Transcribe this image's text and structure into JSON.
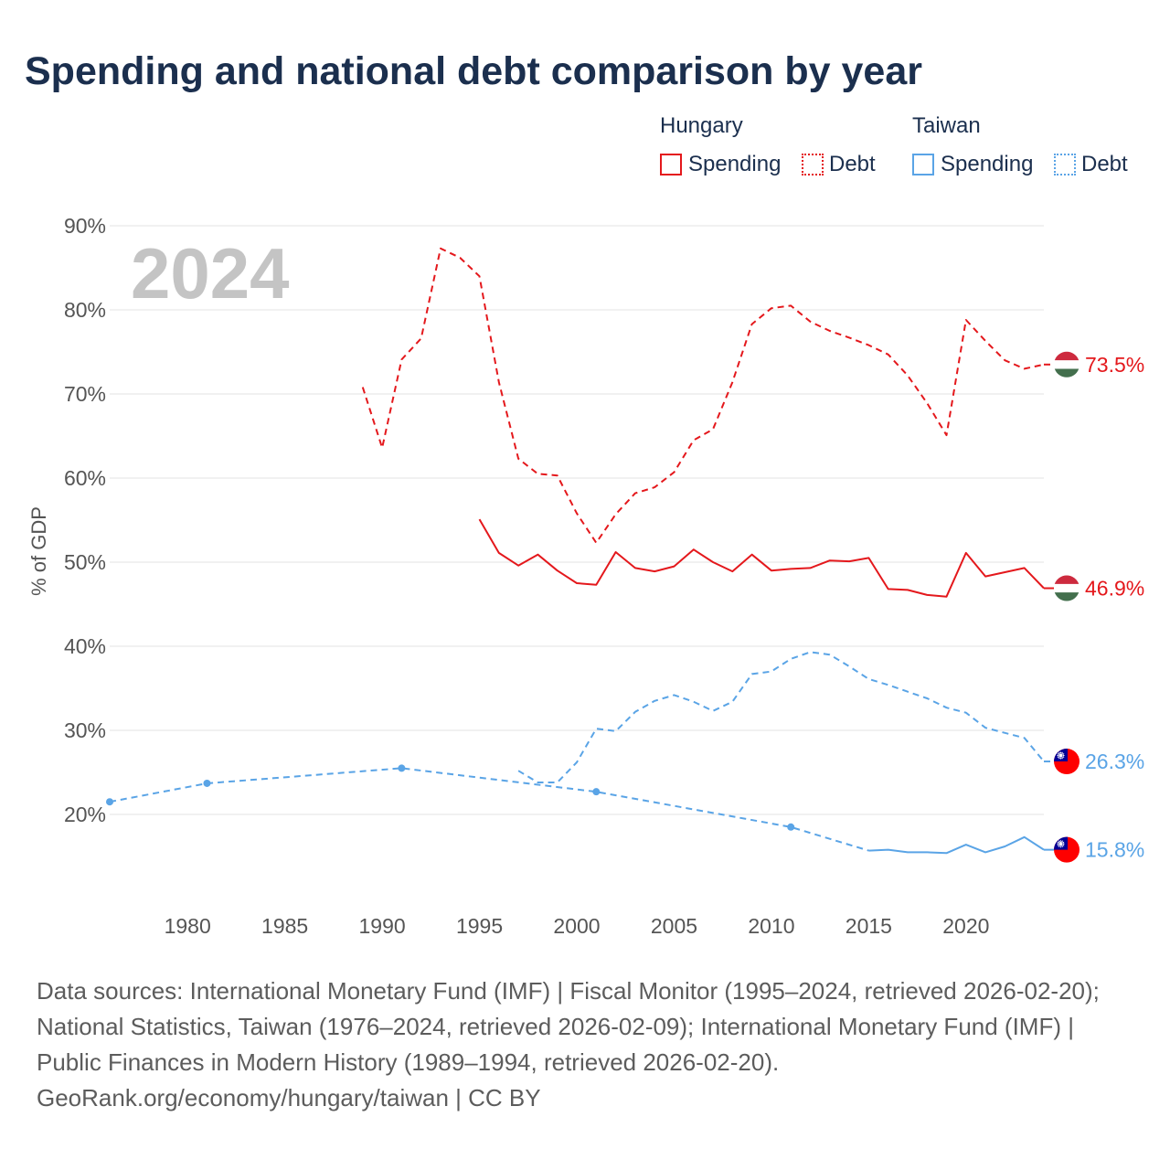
{
  "chart_data": {
    "type": "line",
    "title": "Spending and national debt comparison by year",
    "xlabel": "",
    "ylabel": "% of GDP",
    "year_label": "2024",
    "xlim": [
      1976,
      2024
    ],
    "ylim": [
      10,
      90
    ],
    "grid": true,
    "xticks": [
      1980,
      1985,
      1990,
      1995,
      2000,
      2005,
      2010,
      2015,
      2020
    ],
    "xtick_labels": [
      "1980",
      "1985",
      "1990",
      "1995",
      "2000",
      "2005",
      "2010",
      "2015",
      "2020"
    ],
    "yticks": [
      20,
      30,
      40,
      50,
      60,
      70,
      80,
      90
    ],
    "ytick_labels": [
      "20%",
      "30%",
      "40%",
      "50%",
      "60%",
      "70%",
      "80%",
      "90%"
    ],
    "groups": [
      {
        "label": "Hungary",
        "series": [
          {
            "label": "Spending",
            "color": "#e4181c",
            "dashed": false,
            "flag": "hungary-flag-icon",
            "end_label": "46.9%",
            "points": [
              [
                1995,
                55.1
              ],
              [
                1996,
                51.1
              ],
              [
                1997,
                49.6
              ],
              [
                1998,
                50.9
              ],
              [
                1999,
                49.0
              ],
              [
                2000,
                47.5
              ],
              [
                2001,
                47.3
              ],
              [
                2002,
                51.2
              ],
              [
                2003,
                49.3
              ],
              [
                2004,
                48.9
              ],
              [
                2005,
                49.5
              ],
              [
                2006,
                51.5
              ],
              [
                2007,
                50.0
              ],
              [
                2008,
                48.9
              ],
              [
                2009,
                50.9
              ],
              [
                2010,
                49.0
              ],
              [
                2011,
                49.2
              ],
              [
                2012,
                49.3
              ],
              [
                2013,
                50.2
              ],
              [
                2014,
                50.1
              ],
              [
                2015,
                50.5
              ],
              [
                2016,
                46.8
              ],
              [
                2017,
                46.7
              ],
              [
                2018,
                46.1
              ],
              [
                2019,
                45.9
              ],
              [
                2020,
                51.1
              ],
              [
                2021,
                48.3
              ],
              [
                2022,
                48.8
              ],
              [
                2023,
                49.3
              ],
              [
                2024,
                46.9
              ]
            ]
          },
          {
            "label": "Debt",
            "color": "#e4181c",
            "dashed": true,
            "flag": "hungary-flag-icon",
            "end_label": "73.5%",
            "points": [
              [
                1989,
                70.8
              ],
              [
                1990,
                63.6
              ],
              [
                1991,
                74.1
              ],
              [
                1992,
                76.6
              ],
              [
                1993,
                87.3
              ],
              [
                1994,
                86.2
              ],
              [
                1995,
                84.0
              ],
              [
                1996,
                71.4
              ],
              [
                1997,
                62.3
              ],
              [
                1998,
                60.5
              ],
              [
                1999,
                60.3
              ],
              [
                2000,
                55.8
              ],
              [
                2001,
                52.3
              ],
              [
                2002,
                55.7
              ],
              [
                2003,
                58.2
              ],
              [
                2004,
                58.9
              ],
              [
                2005,
                60.7
              ],
              [
                2006,
                64.5
              ],
              [
                2007,
                65.8
              ],
              [
                2008,
                71.4
              ],
              [
                2009,
                78.3
              ],
              [
                2010,
                80.2
              ],
              [
                2011,
                80.5
              ],
              [
                2012,
                78.6
              ],
              [
                2013,
                77.5
              ],
              [
                2014,
                76.7
              ],
              [
                2015,
                75.8
              ],
              [
                2016,
                74.7
              ],
              [
                2017,
                72.2
              ],
              [
                2018,
                68.9
              ],
              [
                2019,
                65.1
              ],
              [
                2020,
                78.8
              ],
              [
                2021,
                76.3
              ],
              [
                2022,
                74.0
              ],
              [
                2023,
                73.0
              ],
              [
                2024,
                73.5
              ]
            ]
          }
        ]
      },
      {
        "label": "Taiwan",
        "series": [
          {
            "label": "Spending",
            "color": "#5aa4e6",
            "dashed": false,
            "flag": "taiwan-flag-icon",
            "end_label": "15.8%",
            "points": [
              [
                1976,
                21.5
              ],
              [
                1981,
                23.7
              ],
              [
                1991,
                25.5
              ],
              [
                2001,
                22.7
              ],
              [
                2011,
                18.5
              ],
              [
                2015,
                15.7
              ],
              [
                2016,
                15.8
              ],
              [
                2017,
                15.5
              ],
              [
                2018,
                15.5
              ],
              [
                2019,
                15.4
              ],
              [
                2020,
                16.4
              ],
              [
                2021,
                15.5
              ],
              [
                2022,
                16.2
              ],
              [
                2023,
                17.3
              ],
              [
                2024,
                15.8
              ]
            ]
          },
          {
            "label": "Debt",
            "color": "#5aa4e6",
            "dashed": true,
            "flag": "taiwan-flag-icon",
            "end_label": "26.3%",
            "points": [
              [
                1997,
                25.2
              ],
              [
                1998,
                23.8
              ],
              [
                1999,
                23.8
              ],
              [
                2000,
                26.2
              ],
              [
                2001,
                30.2
              ],
              [
                2002,
                29.9
              ],
              [
                2003,
                32.2
              ],
              [
                2004,
                33.5
              ],
              [
                2005,
                34.2
              ],
              [
                2006,
                33.4
              ],
              [
                2007,
                32.3
              ],
              [
                2008,
                33.4
              ],
              [
                2009,
                36.7
              ],
              [
                2010,
                37.0
              ],
              [
                2011,
                38.5
              ],
              [
                2012,
                39.3
              ],
              [
                2013,
                39.0
              ],
              [
                2014,
                37.6
              ],
              [
                2015,
                36.1
              ],
              [
                2016,
                35.4
              ],
              [
                2017,
                34.6
              ],
              [
                2018,
                33.8
              ],
              [
                2019,
                32.7
              ],
              [
                2020,
                32.1
              ],
              [
                2021,
                30.3
              ],
              [
                2022,
                29.7
              ],
              [
                2023,
                29.1
              ],
              [
                2024,
                26.3
              ]
            ]
          }
        ]
      }
    ]
  },
  "footer": {
    "lines": [
      "Data sources: International Monetary Fund (IMF) | Fiscal Monitor (1995–2024, retrieved 2026-02-20);",
      "National Statistics, Taiwan (1976–2024, retrieved 2026-02-09); International Monetary Fund (IMF) |",
      "Public Finances in Modern History (1989–1994, retrieved 2026-02-20).",
      "GeoRank.org/economy/hungary/taiwan | CC BY"
    ]
  }
}
